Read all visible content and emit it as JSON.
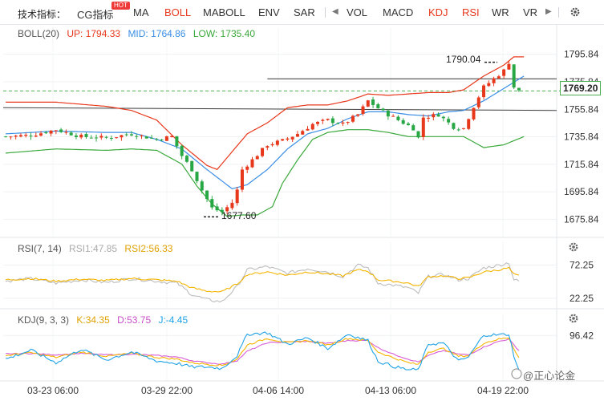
{
  "toolbar": {
    "label": "技术指标：",
    "items": [
      {
        "label": "CG指标",
        "active": false
      },
      {
        "label": "MA",
        "active": false
      },
      {
        "label": "BOLL",
        "active": true
      },
      {
        "label": "MABOLL",
        "active": false
      },
      {
        "label": "ENV",
        "active": false
      },
      {
        "label": "SAR",
        "active": false
      },
      {
        "label": "VOL",
        "active": false
      },
      {
        "label": "MACD",
        "active": false
      },
      {
        "label": "KDJ",
        "active": true
      },
      {
        "label": "RSI",
        "active": true
      },
      {
        "label": "WR",
        "active": false
      },
      {
        "label": "VR",
        "active": false
      }
    ],
    "hot_badge": "HOT",
    "icons": [
      "chevron-left-icon",
      "chevron-right-icon",
      "gear-icon"
    ]
  },
  "colors": {
    "up_candle": "#e8381c",
    "down_candle": "#28a745",
    "boll_up": "#e8381c",
    "boll_mid": "#3a8ee6",
    "boll_low": "#3aa83a",
    "rsi1": "#bdbdbd",
    "rsi2": "#f5b400",
    "kdj_k": "#f5b400",
    "kdj_d": "#d85cd6",
    "kdj_j": "#1fa2e6"
  },
  "boll": {
    "label": "BOLL(20)",
    "up": "UP: 1794.33",
    "mid": "MID: 1764.86",
    "low": "LOW: 1735.40"
  },
  "rsi": {
    "label": "RSI(7, 14)",
    "rsi1": "RSI1:47.85",
    "rsi2": "RSI2:56.33"
  },
  "kdj": {
    "label": "KDJ(9, 3, 3)",
    "k": "K:34.35",
    "d": "D:53.75",
    "j": "J:-4.45"
  },
  "chart_data": [
    {
      "type": "candlestick",
      "panel": "price",
      "y_ticks": [
        "1795.84",
        "1775.84",
        "1755.84",
        "1735.84",
        "1715.84",
        "1695.84",
        "1675.84"
      ],
      "ylim": [
        1665,
        1805
      ],
      "current_price": "1769.20",
      "high_annotation": "1790.04",
      "low_annotation": "1677.60",
      "x_ticks": [
        "03-23 06:00",
        "03-29 22:00",
        "04-06 14:00",
        "04-13 06:00",
        "04-19 22:00"
      ],
      "close_anchors": [
        [
          0,
          1736
        ],
        [
          5,
          1737
        ],
        [
          10,
          1741
        ],
        [
          15,
          1736
        ],
        [
          20,
          1735
        ],
        [
          25,
          1738
        ],
        [
          30,
          1734
        ],
        [
          33,
          1736
        ],
        [
          35,
          1722
        ],
        [
          37,
          1712
        ],
        [
          39,
          1697
        ],
        [
          41,
          1684
        ],
        [
          43,
          1681
        ],
        [
          45,
          1688
        ],
        [
          46,
          1697
        ],
        [
          47,
          1712
        ],
        [
          49,
          1719
        ],
        [
          52,
          1730
        ],
        [
          55,
          1733
        ],
        [
          58,
          1738
        ],
        [
          61,
          1745
        ],
        [
          64,
          1748
        ],
        [
          67,
          1745
        ],
        [
          70,
          1752
        ],
        [
          72,
          1762
        ],
        [
          75,
          1754
        ],
        [
          78,
          1748
        ],
        [
          81,
          1742
        ],
        [
          82,
          1735
        ],
        [
          83,
          1750
        ],
        [
          86,
          1752
        ],
        [
          89,
          1743
        ],
        [
          91,
          1742
        ],
        [
          93,
          1758
        ],
        [
          95,
          1772
        ],
        [
          97,
          1778
        ],
        [
          99,
          1784
        ],
        [
          100,
          1790
        ],
        [
          101,
          1772
        ],
        [
          102,
          1769
        ]
      ],
      "boll_up_anchors": [
        [
          0,
          1761
        ],
        [
          10,
          1761
        ],
        [
          20,
          1758
        ],
        [
          25,
          1755
        ],
        [
          30,
          1748
        ],
        [
          35,
          1730
        ],
        [
          40,
          1715
        ],
        [
          42,
          1712
        ],
        [
          45,
          1725
        ],
        [
          48,
          1738
        ],
        [
          52,
          1746
        ],
        [
          56,
          1757
        ],
        [
          60,
          1759
        ],
        [
          64,
          1759
        ],
        [
          68,
          1762
        ],
        [
          72,
          1767
        ],
        [
          76,
          1766
        ],
        [
          80,
          1767
        ],
        [
          84,
          1768
        ],
        [
          88,
          1768
        ],
        [
          91,
          1770
        ],
        [
          95,
          1780
        ],
        [
          99,
          1788
        ],
        [
          101,
          1794
        ],
        [
          103,
          1794
        ]
      ],
      "boll_mid_anchors": [
        [
          0,
          1738
        ],
        [
          10,
          1740
        ],
        [
          20,
          1739
        ],
        [
          25,
          1739
        ],
        [
          30,
          1734
        ],
        [
          35,
          1727
        ],
        [
          40,
          1712
        ],
        [
          45,
          1698
        ],
        [
          48,
          1701
        ],
        [
          52,
          1712
        ],
        [
          56,
          1727
        ],
        [
          60,
          1738
        ],
        [
          64,
          1742
        ],
        [
          68,
          1749
        ],
        [
          72,
          1754
        ],
        [
          76,
          1754
        ],
        [
          80,
          1752
        ],
        [
          84,
          1751
        ],
        [
          88,
          1754
        ],
        [
          91,
          1755
        ],
        [
          95,
          1762
        ],
        [
          99,
          1771
        ],
        [
          103,
          1780
        ]
      ],
      "boll_low_anchors": [
        [
          0,
          1724
        ],
        [
          10,
          1727
        ],
        [
          20,
          1726
        ],
        [
          25,
          1727
        ],
        [
          30,
          1726
        ],
        [
          35,
          1716
        ],
        [
          38,
          1700
        ],
        [
          41,
          1687
        ],
        [
          44,
          1678
        ],
        [
          47,
          1679
        ],
        [
          50,
          1679
        ],
        [
          53,
          1685
        ],
        [
          55,
          1702
        ],
        [
          58,
          1719
        ],
        [
          61,
          1734
        ],
        [
          64,
          1739
        ],
        [
          68,
          1741
        ],
        [
          72,
          1741
        ],
        [
          76,
          1739
        ],
        [
          80,
          1736
        ],
        [
          84,
          1736
        ],
        [
          88,
          1736
        ],
        [
          91,
          1736
        ],
        [
          95,
          1728
        ],
        [
          99,
          1730
        ],
        [
          103,
          1736
        ]
      ],
      "resistance_line": {
        "from": [
          52,
          1778
        ],
        "to": [
          110,
          1778
        ]
      },
      "trend_line": {
        "from": [
          0,
          1757
        ],
        "to": [
          110,
          1755
        ]
      },
      "current_dashed": 1769.2
    },
    {
      "type": "line",
      "panel": "rsi",
      "y_ticks": [
        "72.25",
        "22.25"
      ],
      "ylim": [
        10,
        85
      ],
      "series": [
        {
          "name": "RSI1",
          "anchors": [
            [
              0,
              48
            ],
            [
              5,
              52
            ],
            [
              10,
              45
            ],
            [
              15,
              50
            ],
            [
              20,
              46
            ],
            [
              25,
              52
            ],
            [
              30,
              48
            ],
            [
              34,
              45
            ],
            [
              37,
              28
            ],
            [
              40,
              20
            ],
            [
              43,
              17
            ],
            [
              46,
              40
            ],
            [
              48,
              65
            ],
            [
              52,
              70
            ],
            [
              56,
              60
            ],
            [
              60,
              67
            ],
            [
              64,
              62
            ],
            [
              67,
              55
            ],
            [
              70,
              72
            ],
            [
              72,
              68
            ],
            [
              74,
              45
            ],
            [
              77,
              42
            ],
            [
              80,
              38
            ],
            [
              82,
              30
            ],
            [
              84,
              55
            ],
            [
              87,
              58
            ],
            [
              90,
              50
            ],
            [
              92,
              52
            ],
            [
              95,
              68
            ],
            [
              98,
              72
            ],
            [
              100,
              76
            ],
            [
              101,
              50
            ],
            [
              102,
              48
            ]
          ]
        },
        {
          "name": "RSI2",
          "anchors": [
            [
              0,
              50
            ],
            [
              5,
              52
            ],
            [
              10,
              48
            ],
            [
              15,
              51
            ],
            [
              20,
              49
            ],
            [
              25,
              52
            ],
            [
              30,
              50
            ],
            [
              34,
              48
            ],
            [
              37,
              38
            ],
            [
              40,
              33
            ],
            [
              43,
              32
            ],
            [
              46,
              44
            ],
            [
              48,
              58
            ],
            [
              52,
              62
            ],
            [
              56,
              57
            ],
            [
              60,
              62
            ],
            [
              64,
              59
            ],
            [
              67,
              56
            ],
            [
              70,
              65
            ],
            [
              72,
              63
            ],
            [
              74,
              50
            ],
            [
              77,
              48
            ],
            [
              80,
              45
            ],
            [
              82,
              40
            ],
            [
              84,
              55
            ],
            [
              87,
              56
            ],
            [
              90,
              52
            ],
            [
              92,
              53
            ],
            [
              95,
              62
            ],
            [
              98,
              65
            ],
            [
              100,
              68
            ],
            [
              101,
              58
            ],
            [
              102,
              56
            ]
          ]
        }
      ]
    },
    {
      "type": "line",
      "panel": "kdj",
      "y_ticks": [
        "96.42"
      ],
      "ylim": [
        -20,
        115
      ],
      "series": [
        {
          "name": "K",
          "anchors": [
            [
              0,
              40
            ],
            [
              5,
              48
            ],
            [
              10,
              35
            ],
            [
              15,
              50
            ],
            [
              20,
              38
            ],
            [
              25,
              46
            ],
            [
              30,
              35
            ],
            [
              34,
              30
            ],
            [
              37,
              20
            ],
            [
              40,
              16
            ],
            [
              43,
              12
            ],
            [
              46,
              30
            ],
            [
              48,
              70
            ],
            [
              52,
              88
            ],
            [
              56,
              76
            ],
            [
              60,
              82
            ],
            [
              64,
              70
            ],
            [
              68,
              88
            ],
            [
              72,
              82
            ],
            [
              74,
              50
            ],
            [
              77,
              34
            ],
            [
              80,
              20
            ],
            [
              82,
              15
            ],
            [
              84,
              50
            ],
            [
              87,
              60
            ],
            [
              90,
              38
            ],
            [
              92,
              40
            ],
            [
              95,
              75
            ],
            [
              98,
              86
            ],
            [
              100,
              90
            ],
            [
              101,
              60
            ],
            [
              102,
              34
            ]
          ]
        },
        {
          "name": "D",
          "anchors": [
            [
              0,
              45
            ],
            [
              5,
              46
            ],
            [
              10,
              42
            ],
            [
              15,
              46
            ],
            [
              20,
              42
            ],
            [
              25,
              44
            ],
            [
              30,
              40
            ],
            [
              34,
              36
            ],
            [
              37,
              26
            ],
            [
              40,
              20
            ],
            [
              43,
              16
            ],
            [
              46,
              26
            ],
            [
              48,
              52
            ],
            [
              52,
              76
            ],
            [
              56,
              78
            ],
            [
              60,
              80
            ],
            [
              64,
              74
            ],
            [
              68,
              82
            ],
            [
              72,
              82
            ],
            [
              74,
              62
            ],
            [
              77,
              44
            ],
            [
              80,
              30
            ],
            [
              82,
              22
            ],
            [
              84,
              40
            ],
            [
              87,
              54
            ],
            [
              90,
              44
            ],
            [
              92,
              42
            ],
            [
              95,
              64
            ],
            [
              98,
              80
            ],
            [
              100,
              86
            ],
            [
              101,
              70
            ],
            [
              102,
              54
            ]
          ]
        },
        {
          "name": "J",
          "anchors": [
            [
              0,
              30
            ],
            [
              5,
              55
            ],
            [
              10,
              20
            ],
            [
              15,
              58
            ],
            [
              20,
              28
            ],
            [
              25,
              50
            ],
            [
              30,
              25
            ],
            [
              34,
              18
            ],
            [
              37,
              8
            ],
            [
              40,
              8
            ],
            [
              43,
              4
            ],
            [
              46,
              40
            ],
            [
              48,
              100
            ],
            [
              52,
              104
            ],
            [
              56,
              72
            ],
            [
              60,
              90
            ],
            [
              64,
              60
            ],
            [
              68,
              100
            ],
            [
              72,
              82
            ],
            [
              74,
              24
            ],
            [
              77,
              10
            ],
            [
              80,
              0
            ],
            [
              82,
              0
            ],
            [
              84,
              72
            ],
            [
              87,
              75
            ],
            [
              90,
              24
            ],
            [
              92,
              36
            ],
            [
              95,
              98
            ],
            [
              98,
              98
            ],
            [
              100,
              100
            ],
            [
              101,
              40
            ],
            [
              102,
              -4
            ]
          ]
        }
      ]
    }
  ],
  "watermark": "@正心论金"
}
